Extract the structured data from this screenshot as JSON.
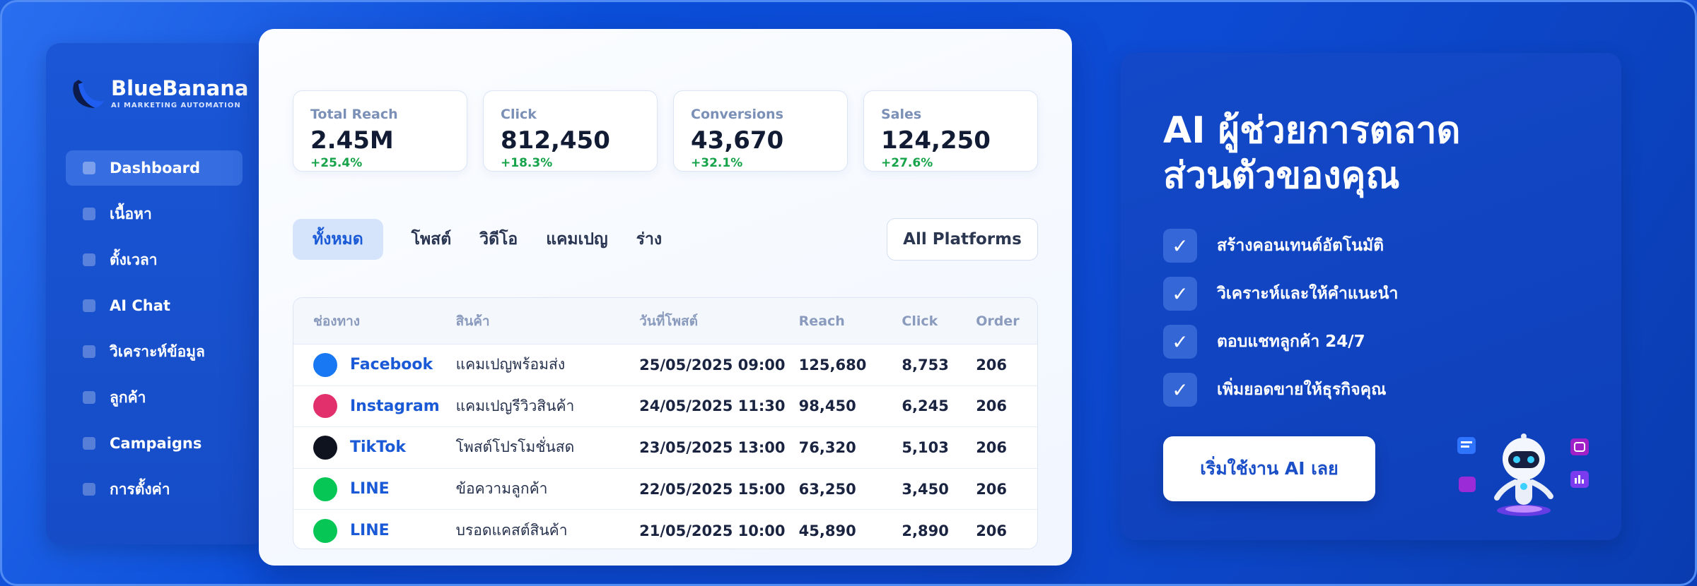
{
  "brand": {
    "name": "BlueBanana",
    "tagline": "AI MARKETING AUTOMATION"
  },
  "sidebar": {
    "items": [
      {
        "label": "Dashboard",
        "active": true
      },
      {
        "label": "เนื้อหา"
      },
      {
        "label": "ตั้งเวลา"
      },
      {
        "label": "AI Chat"
      },
      {
        "label": "วิเคราะห์ข้อมูล"
      },
      {
        "label": "ลูกค้า"
      },
      {
        "label": "Campaigns"
      },
      {
        "label": "การตั้งค่า"
      }
    ]
  },
  "stats": [
    {
      "label": "Total Reach",
      "value": "2.45M",
      "delta": "+25.4%"
    },
    {
      "label": "Click",
      "value": "812,450",
      "delta": "+18.3%"
    },
    {
      "label": "Conversions",
      "value": "43,670",
      "delta": "+32.1%"
    },
    {
      "label": "Sales",
      "value": "124,250",
      "delta": "+27.6%"
    }
  ],
  "tabs": [
    {
      "label": "ทั้งหมด",
      "active": true
    },
    {
      "label": "โพสต์"
    },
    {
      "label": "วิดีโอ"
    },
    {
      "label": "แคมเปญ"
    },
    {
      "label": "ร่าง"
    }
  ],
  "platform_filter": "All Platforms",
  "table": {
    "headers": [
      "ช่องทาง",
      "สินค้า",
      "วันที่โพสต์",
      "Reach",
      "Click",
      "Order"
    ],
    "rows": [
      {
        "platform": "Facebook",
        "color": "#1877f2",
        "product": "แคมเปญพร้อมส่ง",
        "date": "25/05/2025 09:00",
        "reach": "125,680",
        "click": "8,753",
        "order": "206"
      },
      {
        "platform": "Instagram",
        "color": "#e1306c",
        "product": "แคมเปญรีวิวสินค้า",
        "date": "24/05/2025 11:30",
        "reach": "98,450",
        "click": "6,245",
        "order": "206"
      },
      {
        "platform": "TikTok",
        "color": "#0f1320",
        "product": "โพสต์โปรโมชั่นสด",
        "date": "23/05/2025 13:00",
        "reach": "76,320",
        "click": "5,103",
        "order": "206"
      },
      {
        "platform": "LINE",
        "color": "#06c755",
        "product": "ข้อความลูกค้า",
        "date": "22/05/2025 15:00",
        "reach": "63,250",
        "click": "3,450",
        "order": "206"
      },
      {
        "platform": "LINE",
        "color": "#06c755",
        "product": "บรอดแคสต์สินค้า",
        "date": "21/05/2025 10:00",
        "reach": "45,890",
        "click": "2,890",
        "order": "206"
      }
    ]
  },
  "promo": {
    "title_line1": "AI ผู้ช่วยการตลาด",
    "title_line2": "ส่วนตัวของคุณ",
    "features": [
      "สร้างคอนเทนต์อัตโนมัติ",
      "วิเคราะห์และให้คำแนะนำ",
      "ตอบแชทลูกค้า 24/7",
      "เพิ่มยอดขายให้ธุรกิจคุณ"
    ],
    "check_icon": "✓",
    "cta_label": "เริ่มใช้งาน AI เลย"
  },
  "colors": {
    "accent": "#1b5ad6",
    "positive": "#17a34a"
  }
}
